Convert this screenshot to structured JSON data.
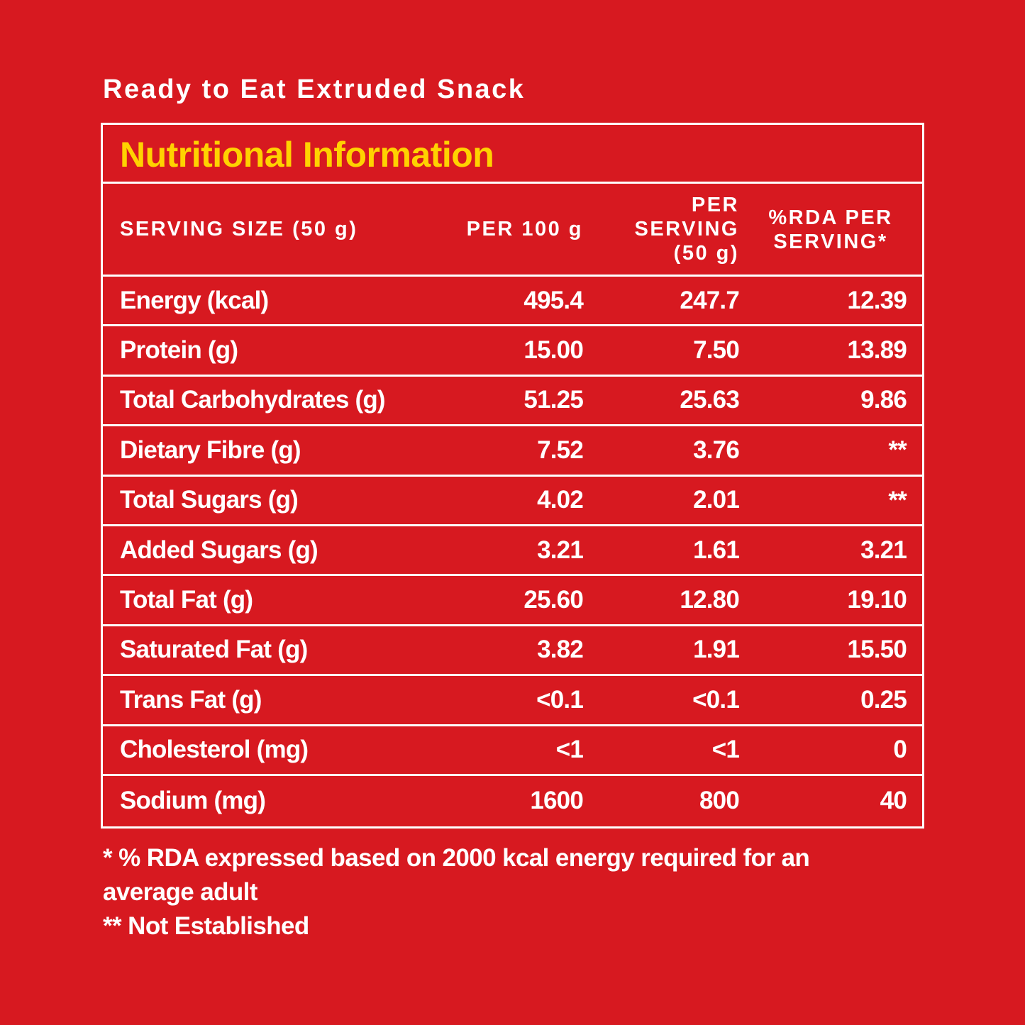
{
  "product_title": "Ready to Eat Extruded Snack",
  "panel": {
    "title": "Nutritional Information",
    "title_color": "#FFD200",
    "background_color": "#D71920",
    "header": {
      "col0": "SERVING SIZE (50 g)",
      "col1": "PER 100 g",
      "col2_lines": [
        "PER",
        "SERVING",
        "(50 g)"
      ],
      "col3_lines": [
        "%RDA PER",
        "SERVING*"
      ]
    },
    "rows": [
      {
        "nutrient": "Energy (kcal)",
        "per_100g": "495.4",
        "per_serving": "247.7",
        "rda": "12.39"
      },
      {
        "nutrient": "Protein (g)",
        "per_100g": "15.00",
        "per_serving": "7.50",
        "rda": "13.89"
      },
      {
        "nutrient": "Total Carbohydrates (g)",
        "per_100g": "51.25",
        "per_serving": "25.63",
        "rda": "9.86"
      },
      {
        "nutrient": "Dietary Fibre (g)",
        "per_100g": "7.52",
        "per_serving": "3.76",
        "rda": "**"
      },
      {
        "nutrient": "Total Sugars (g)",
        "per_100g": "4.02",
        "per_serving": "2.01",
        "rda": "**"
      },
      {
        "nutrient": "Added Sugars (g)",
        "per_100g": "3.21",
        "per_serving": "1.61",
        "rda": "3.21"
      },
      {
        "nutrient": "Total Fat (g)",
        "per_100g": "25.60",
        "per_serving": "12.80",
        "rda": "19.10"
      },
      {
        "nutrient": "Saturated Fat (g)",
        "per_100g": "3.82",
        "per_serving": "1.91",
        "rda": "15.50"
      },
      {
        "nutrient": "Trans Fat (g)",
        "per_100g": "<0.1",
        "per_serving": "<0.1",
        "rda": "0.25"
      },
      {
        "nutrient": "Cholesterol (mg)",
        "per_100g": "<1",
        "per_serving": "<1",
        "rda": "0"
      },
      {
        "nutrient": "Sodium (mg)",
        "per_100g": "1600",
        "per_serving": "800",
        "rda": "40"
      }
    ]
  },
  "footnotes": {
    "line1": "* % RDA expressed based on 2000 kcal energy required for an",
    "line2": "average adult",
    "line3": "** Not Established"
  }
}
